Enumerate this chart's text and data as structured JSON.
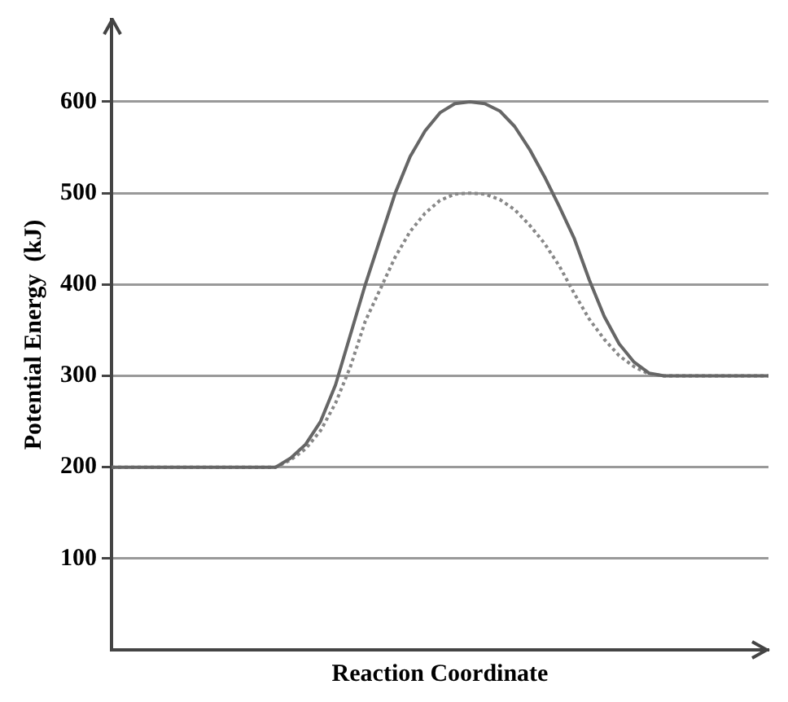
{
  "chart_data": {
    "type": "line",
    "xlabel": "Reaction Coordinate",
    "ylabel": "Potential Energy  (kJ)",
    "categories": [
      null,
      null,
      null,
      null,
      null,
      null,
      null,
      null,
      null,
      null,
      null,
      null,
      null,
      null,
      null,
      null,
      null,
      null,
      null,
      null,
      null,
      null,
      null,
      null,
      null,
      null,
      null,
      null,
      null,
      null,
      null,
      null,
      null,
      null,
      null,
      null,
      null,
      null,
      null,
      null,
      null,
      null,
      null,
      null,
      null
    ],
    "series": [
      {
        "color": "#666666",
        "line_style": "solid",
        "values": [
          200,
          200,
          200,
          200,
          200,
          200,
          200,
          200,
          200,
          200,
          200,
          200,
          210,
          225,
          250,
          290,
          345,
          400,
          450,
          500,
          540,
          568,
          588,
          598,
          600,
          598,
          590,
          573,
          548,
          518,
          485,
          450,
          405,
          365,
          335,
          315,
          303,
          300,
          300,
          300,
          300,
          300,
          300,
          300,
          300
        ]
      },
      {
        "color": "#888888",
        "line_style": "dotted",
        "values": [
          200,
          200,
          200,
          200,
          200,
          200,
          200,
          200,
          200,
          200,
          200,
          200,
          208,
          220,
          240,
          270,
          310,
          360,
          395,
          430,
          458,
          478,
          492,
          499,
          500,
          499,
          493,
          482,
          465,
          445,
          420,
          390,
          362,
          340,
          322,
          310,
          302,
          300,
          300,
          300,
          300,
          300,
          300,
          300,
          300
        ]
      }
    ],
    "ylim": [
      0,
      690
    ],
    "yticks": [
      100,
      200,
      300,
      400,
      500,
      600
    ],
    "grid": "y",
    "legend": false,
    "marker": "none",
    "tick_labels": "y"
  }
}
